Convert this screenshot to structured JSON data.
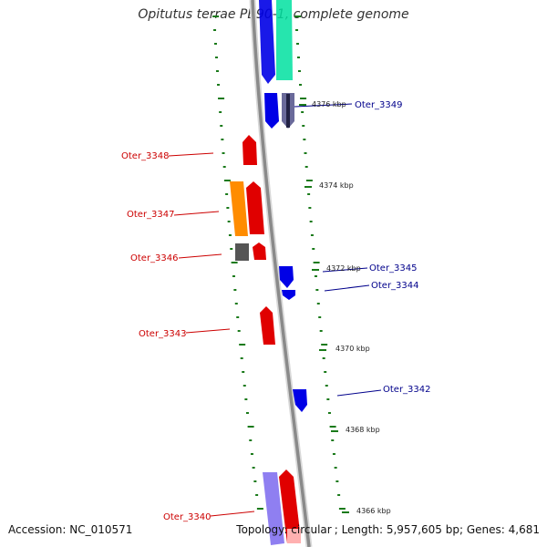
{
  "title": "Opitutus terrae PB90-1, complete genome",
  "footer": {
    "accession_label": "Accession:",
    "accession": "NC_010571",
    "topology_label": "Topology:",
    "topology": "circular",
    "length_label": "Length:",
    "length": "5,957,605 bp",
    "genes_label": "Genes:",
    "genes": "4,681"
  },
  "colors": {
    "forward_gene": "#e00000",
    "reverse_gene": "#0000e6",
    "forward_label": "#cc0000",
    "reverse_label": "#00008b",
    "orange_feature": "#ff8c00",
    "grey_feature": "#555555",
    "lavender_feature": "#7b68ee",
    "teal_feature": "#00e0a0",
    "tick": "#1a7a1a",
    "backbone": "#888888"
  },
  "chart_data": {
    "type": "genome_map",
    "title": "Opitutus terrae PB90-1, complete genome",
    "kbp_labels": [
      "4376 kbp",
      "4374 kbp",
      "4372 kbp",
      "4370 kbp",
      "4368 kbp",
      "4366 kbp"
    ],
    "forward_genes": [
      "Oter_3348",
      "Oter_3347",
      "Oter_3346",
      "Oter_3343",
      "Oter_3340"
    ],
    "reverse_genes": [
      "Oter_3349",
      "Oter_3345",
      "Oter_3344",
      "Oter_3342"
    ]
  }
}
